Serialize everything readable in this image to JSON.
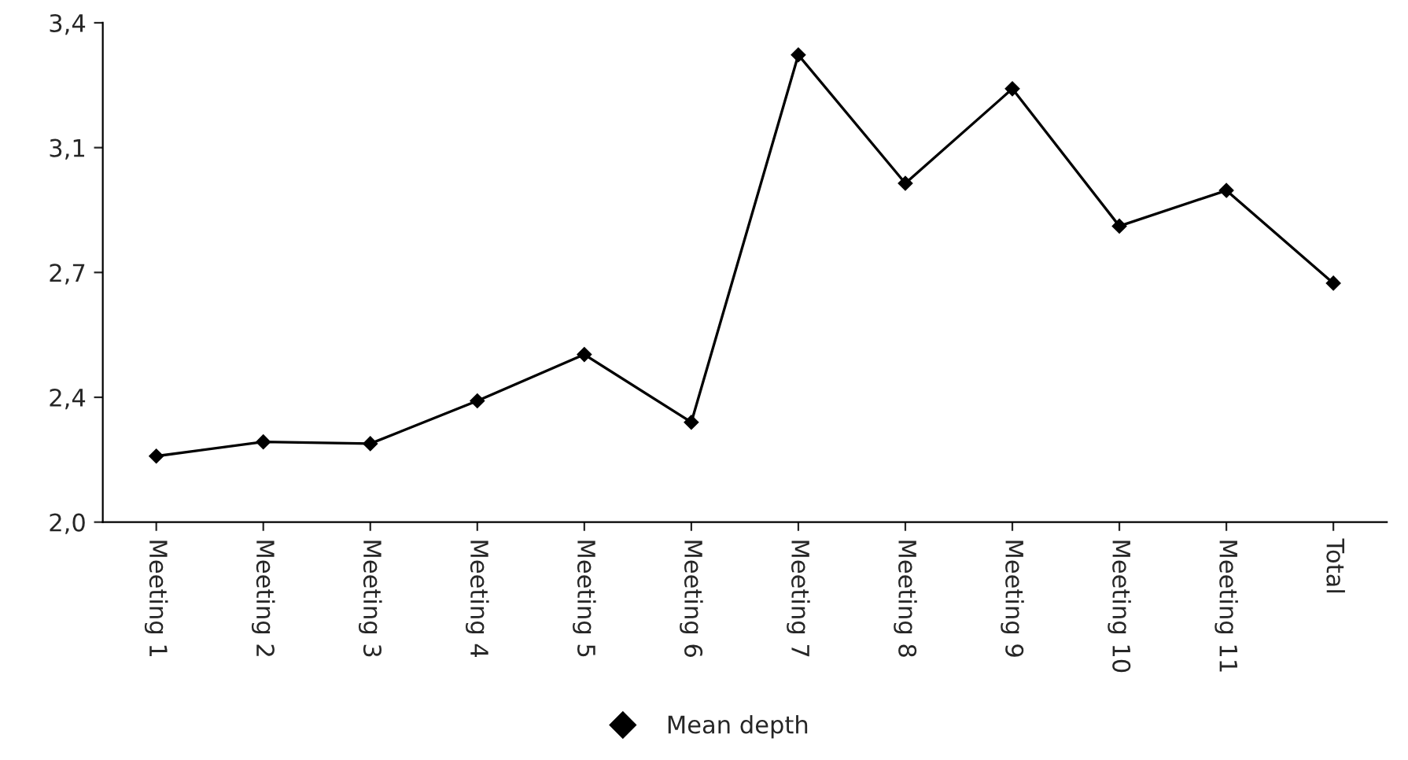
{
  "chart_data": {
    "type": "line",
    "categories": [
      "Meeting 1",
      "Meeting 2",
      "Meeting 3",
      "Meeting 4",
      "Meeting 5",
      "Meeting 6",
      "Meeting 7",
      "Meeting 8",
      "Meeting 9",
      "Meeting 10",
      "Meeting 11",
      "Total"
    ],
    "series": [
      {
        "name": "Mean depth",
        "color": "#000000",
        "values": [
          2.185,
          2.225,
          2.22,
          2.34,
          2.47,
          2.28,
          3.31,
          2.95,
          3.215,
          2.83,
          2.93,
          2.67
        ]
      }
    ],
    "ylim": [
      2.0,
      3.4
    ],
    "yticks": [
      {
        "value": 2.0,
        "label": "2,0"
      },
      {
        "value": 2.35,
        "label": "2,4"
      },
      {
        "value": 2.7,
        "label": "2,7"
      },
      {
        "value": 3.05,
        "label": "3,1"
      },
      {
        "value": 3.4,
        "label": "3,4"
      }
    ],
    "marker": "diamond",
    "line_style": "solid",
    "grid": false,
    "legend": "bottom"
  }
}
